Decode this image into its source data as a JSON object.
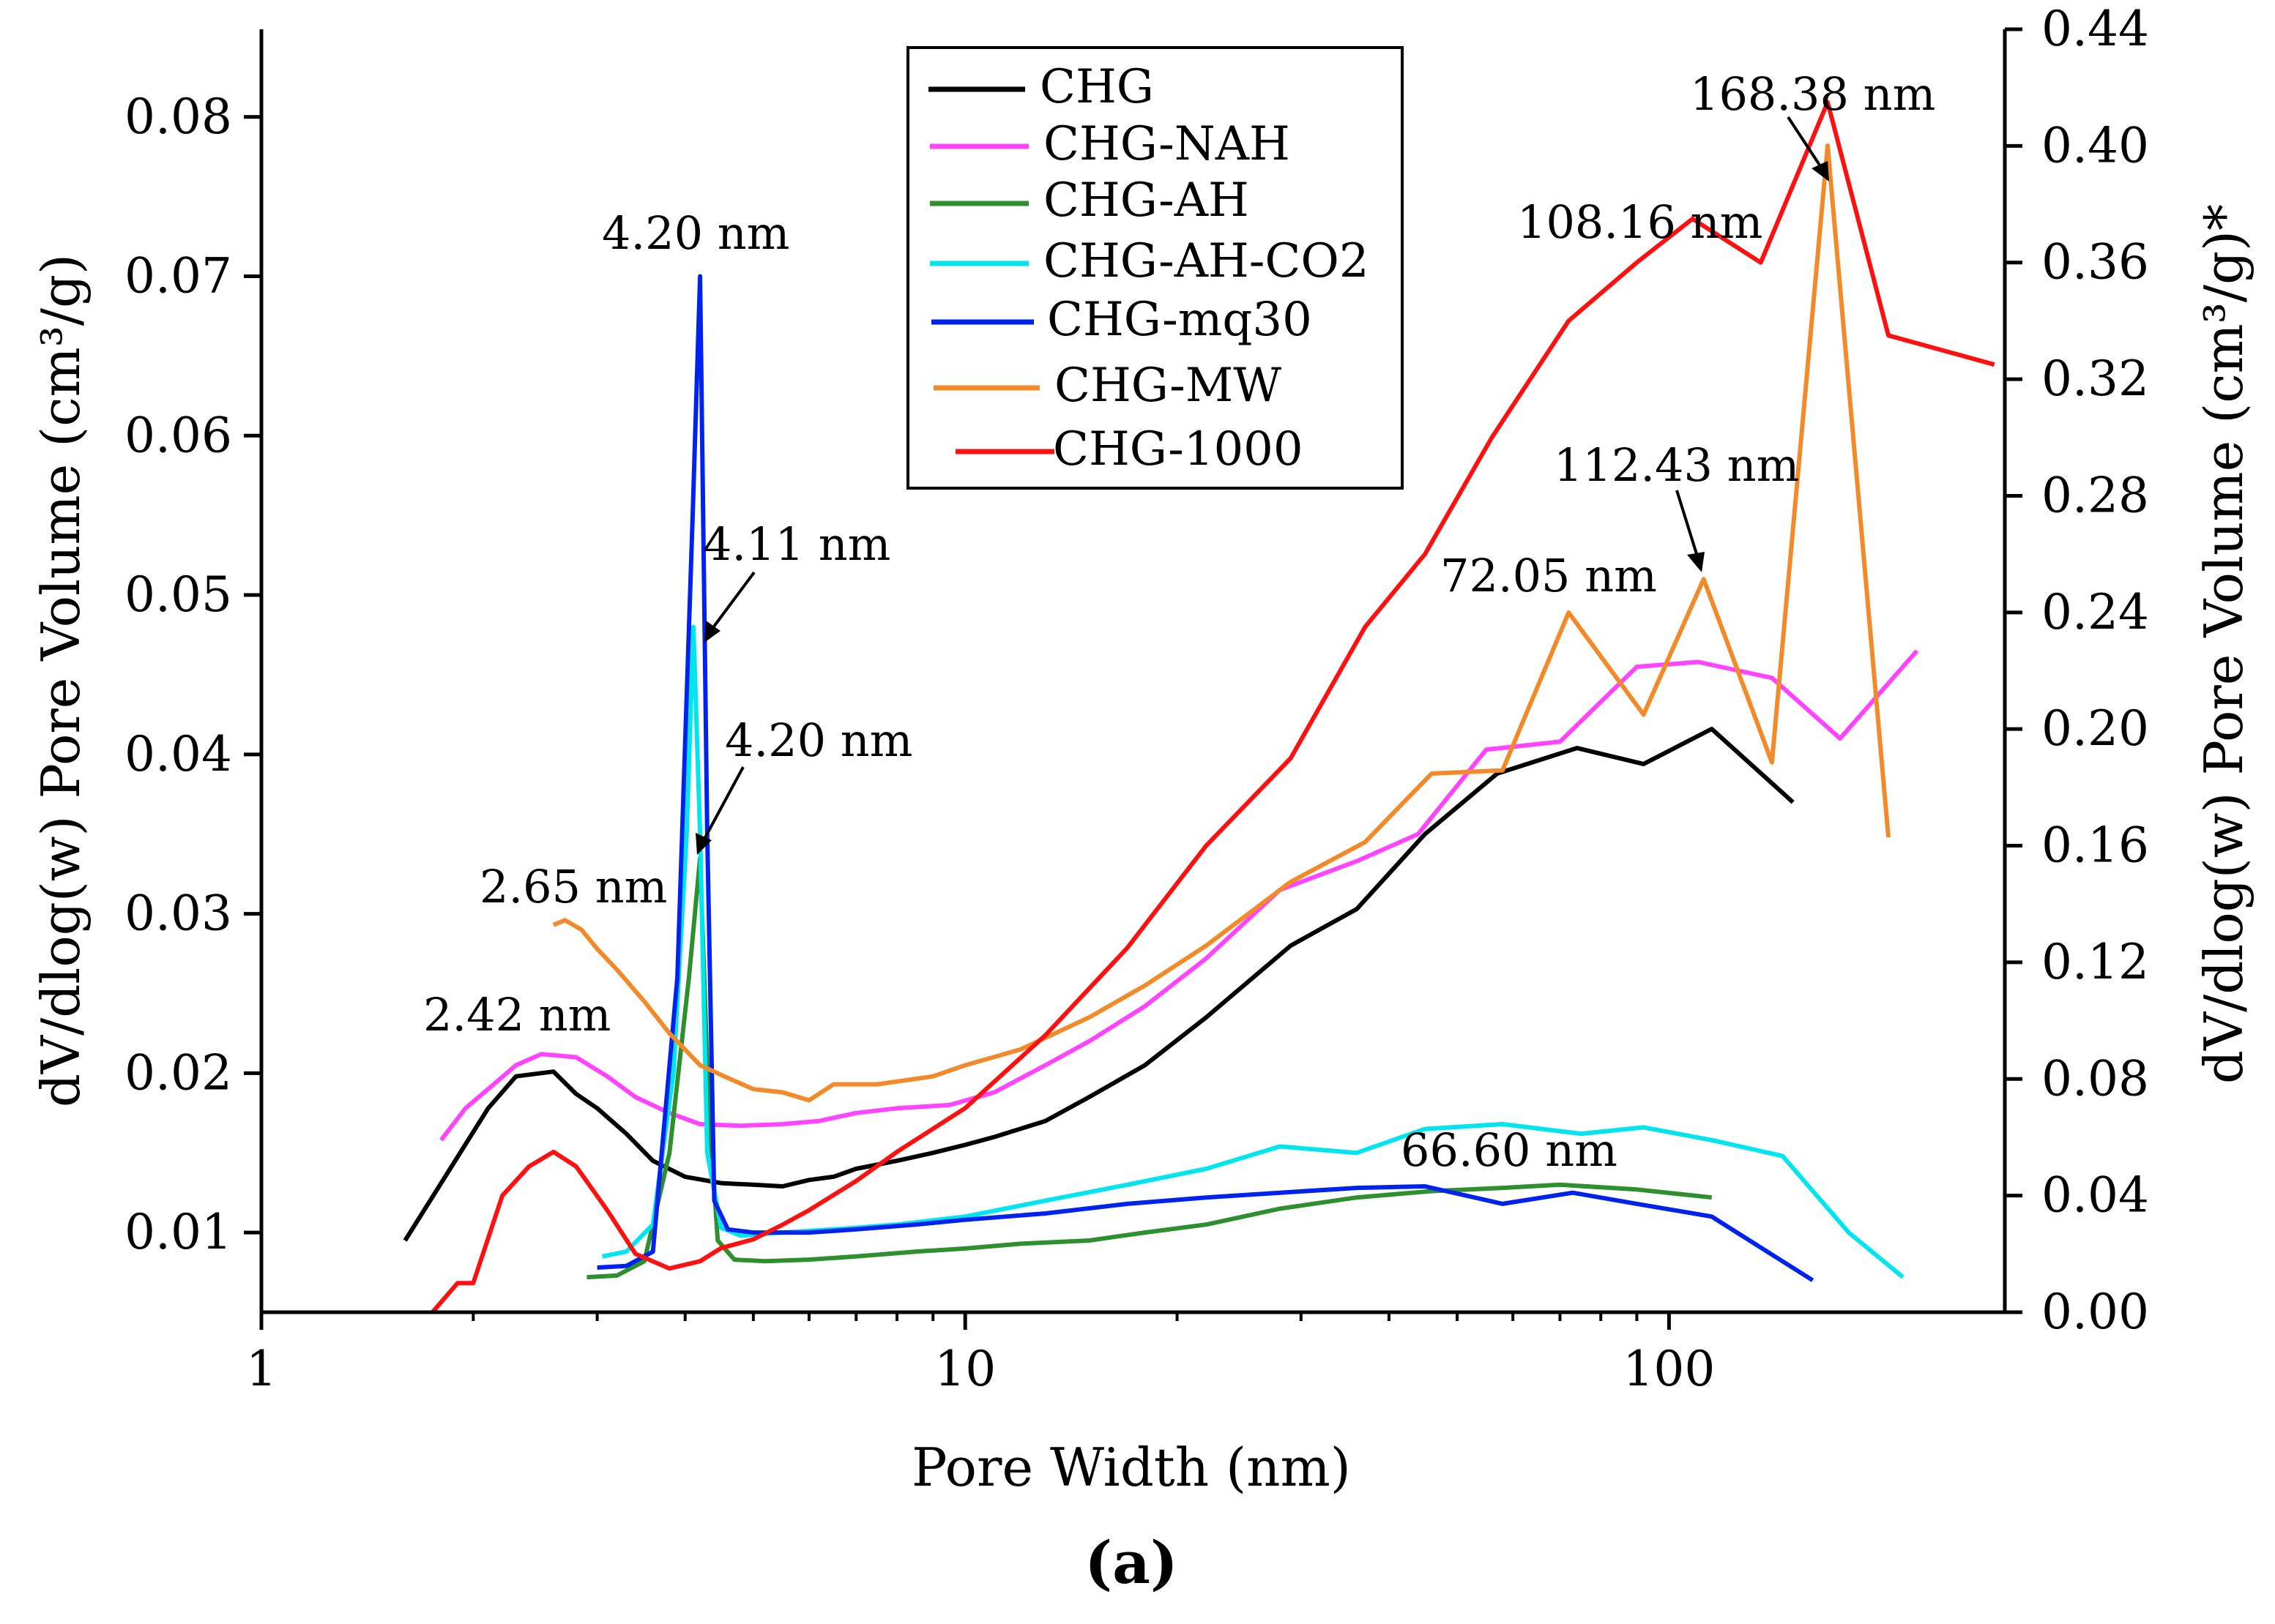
{
  "chart_data": {
    "type": "line",
    "title": "",
    "caption": "(a)",
    "xlabel": "Pore Width (nm)",
    "ylabel": "dV/dlog(w) Pore Volume (cm³/g)",
    "y2label": "dV/dlog(w) Pore Volume (cm³/g)*",
    "xscale": "log",
    "xlim": [
      1,
      300
    ],
    "ylim": [
      0.005,
      0.0855
    ],
    "y2lim": [
      0.0,
      0.44
    ],
    "x_ticks": [
      1,
      10,
      100
    ],
    "x_tick_labels": [
      "1",
      "10",
      "100"
    ],
    "y_ticks": [
      0.01,
      0.02,
      0.03,
      0.04,
      0.05,
      0.06,
      0.07,
      0.08
    ],
    "y_tick_labels": [
      "0.01",
      "0.02",
      "0.03",
      "0.04",
      "0.05",
      "0.06",
      "0.07",
      "0.08"
    ],
    "y2_ticks": [
      0.0,
      0.04,
      0.08,
      0.12,
      0.16,
      0.2,
      0.24,
      0.28,
      0.32,
      0.36,
      0.4,
      0.44
    ],
    "y2_tick_labels": [
      "0.00",
      "0.04",
      "0.08",
      "0.12",
      "0.16",
      "0.20",
      "0.24",
      "0.28",
      "0.32",
      "0.36",
      "0.40",
      "0.44"
    ],
    "legend_position": "top-center",
    "series": [
      {
        "name": "CHG",
        "color": "#000000",
        "axis": "left",
        "x": [
          1.6,
          2.1,
          2.3,
          2.6,
          2.8,
          3.0,
          3.3,
          3.6,
          4.0,
          4.5,
          5.0,
          5.5,
          6.0,
          6.5,
          7.0,
          8.0,
          9.0,
          10,
          11,
          13,
          15,
          18,
          22,
          29,
          36,
          45,
          57,
          74,
          92,
          115,
          150
        ],
        "y": [
          0.0095,
          0.0178,
          0.0198,
          0.0201,
          0.0187,
          0.0178,
          0.0162,
          0.0145,
          0.0135,
          0.0131,
          0.013,
          0.0129,
          0.0133,
          0.0135,
          0.014,
          0.0145,
          0.015,
          0.0155,
          0.016,
          0.017,
          0.0185,
          0.0205,
          0.0235,
          0.028,
          0.0303,
          0.035,
          0.0388,
          0.0404,
          0.0394,
          0.0416,
          0.037
        ]
      },
      {
        "name": "CHG-NAH",
        "color": "#ff44ff",
        "axis": "left",
        "x": [
          1.8,
          1.95,
          2.1,
          2.3,
          2.5,
          2.8,
          3.1,
          3.4,
          3.8,
          4.2,
          4.8,
          5.5,
          6.2,
          7.0,
          8.0,
          9.5,
          11,
          13,
          15,
          18,
          22,
          28,
          36,
          44,
          55,
          70,
          90,
          110,
          140,
          175,
          225
        ],
        "y": [
          0.0158,
          0.0178,
          0.019,
          0.0205,
          0.0212,
          0.021,
          0.0198,
          0.0185,
          0.0175,
          0.0168,
          0.0167,
          0.0168,
          0.017,
          0.0175,
          0.0178,
          0.018,
          0.0188,
          0.0205,
          0.022,
          0.0242,
          0.0272,
          0.0315,
          0.0333,
          0.035,
          0.0403,
          0.0408,
          0.0455,
          0.0458,
          0.0448,
          0.041,
          0.0465
        ]
      },
      {
        "name": "CHG-AH",
        "color": "#2d8f2d",
        "axis": "left",
        "x": [
          2.9,
          3.2,
          3.5,
          3.8,
          4.05,
          4.2,
          4.32,
          4.45,
          4.7,
          5.2,
          6.0,
          7.0,
          8.5,
          10,
          12,
          15,
          18,
          22,
          28,
          36,
          46,
          58,
          70,
          90,
          115
        ],
        "y": [
          0.0072,
          0.0073,
          0.0082,
          0.015,
          0.026,
          0.0335,
          0.018,
          0.0095,
          0.0083,
          0.0082,
          0.0083,
          0.0085,
          0.0088,
          0.009,
          0.0093,
          0.0095,
          0.01,
          0.0105,
          0.0115,
          0.0122,
          0.0126,
          0.0128,
          0.013,
          0.0127,
          0.0122
        ]
      },
      {
        "name": "CHG-AH-CO2",
        "color": "#00e5ee",
        "axis": "left",
        "x": [
          3.05,
          3.3,
          3.6,
          3.85,
          4.02,
          4.11,
          4.2,
          4.3,
          4.5,
          4.8,
          5.5,
          6.5,
          8.0,
          10,
          13,
          17,
          22,
          28,
          36,
          45,
          58,
          75,
          92,
          115,
          145,
          180,
          215
        ],
        "y": [
          0.0085,
          0.0088,
          0.0105,
          0.02,
          0.035,
          0.048,
          0.035,
          0.015,
          0.0103,
          0.0098,
          0.01,
          0.0102,
          0.0105,
          0.011,
          0.012,
          0.013,
          0.014,
          0.0154,
          0.015,
          0.0165,
          0.0168,
          0.0162,
          0.0166,
          0.0158,
          0.0148,
          0.01,
          0.0072
        ]
      },
      {
        "name": "CHG-mq30",
        "color": "#0022ee",
        "axis": "left",
        "x": [
          3.0,
          3.3,
          3.6,
          3.9,
          4.1,
          4.2,
          4.3,
          4.4,
          4.6,
          5.0,
          6.0,
          7.0,
          8.5,
          10,
          13,
          17,
          22,
          28,
          36,
          45,
          58,
          73,
          90,
          115,
          160
        ],
        "y": [
          0.0078,
          0.0079,
          0.0088,
          0.026,
          0.055,
          0.07,
          0.035,
          0.012,
          0.0102,
          0.01,
          0.01,
          0.0102,
          0.0105,
          0.0108,
          0.0112,
          0.0118,
          0.0122,
          0.0125,
          0.0128,
          0.0129,
          0.0118,
          0.0125,
          0.0118,
          0.011,
          0.007
        ]
      },
      {
        "name": "CHG-MW",
        "color": "#f28a2a",
        "axis": "left",
        "x": [
          2.6,
          2.7,
          2.85,
          3.0,
          3.2,
          3.5,
          3.8,
          4.2,
          4.6,
          5.0,
          5.5,
          6.0,
          6.5,
          7.5,
          9.0,
          10,
          12,
          15,
          18,
          22,
          29,
          37,
          46,
          58,
          72,
          92,
          112,
          140,
          168,
          205
        ],
        "y": [
          0.0293,
          0.0296,
          0.029,
          0.0278,
          0.0265,
          0.0245,
          0.0225,
          0.0205,
          0.0197,
          0.019,
          0.0188,
          0.0183,
          0.0193,
          0.0193,
          0.0198,
          0.0205,
          0.0215,
          0.0235,
          0.0255,
          0.028,
          0.032,
          0.0345,
          0.0388,
          0.039,
          0.0489,
          0.0425,
          0.051,
          0.0395,
          0.0782,
          0.0348
        ]
      },
      {
        "name": "CHG-1000",
        "color": "#ff1010",
        "axis": "right",
        "x": [
          1.75,
          1.9,
          2.0,
          2.2,
          2.4,
          2.6,
          2.8,
          3.1,
          3.4,
          3.8,
          4.2,
          4.5,
          5.0,
          5.5,
          6.0,
          7.0,
          8.0,
          10,
          13,
          17,
          22,
          29,
          37,
          45,
          56,
          72,
          90,
          108,
          135,
          168,
          205,
          290
        ],
        "y": [
          0.0,
          0.01,
          0.01,
          0.04,
          0.05,
          0.055,
          0.05,
          0.035,
          0.02,
          0.015,
          0.0175,
          0.022,
          0.025,
          0.03,
          0.035,
          0.045,
          0.055,
          0.07,
          0.095,
          0.125,
          0.16,
          0.19,
          0.235,
          0.26,
          0.3,
          0.34,
          0.36,
          0.375,
          0.36,
          0.415,
          0.335,
          0.325
        ]
      }
    ],
    "annotations": [
      {
        "text": "4.20 nm",
        "series": "CHG-mq30"
      },
      {
        "text": "4.11 nm",
        "series": "CHG-AH-CO2"
      },
      {
        "text": "4.20 nm",
        "series": "CHG-AH"
      },
      {
        "text": "2.65 nm",
        "series": "CHG-MW"
      },
      {
        "text": "2.42 nm",
        "series": "CHG-NAH"
      },
      {
        "text": "108.16 nm",
        "series": "CHG-1000"
      },
      {
        "text": "168.38 nm",
        "series": "CHG-MW"
      },
      {
        "text": "112.43 nm",
        "series": "CHG-MW"
      },
      {
        "text": "72.05 nm",
        "series": "CHG"
      },
      {
        "text": "66.60 nm",
        "series": "CHG-AH"
      }
    ]
  }
}
